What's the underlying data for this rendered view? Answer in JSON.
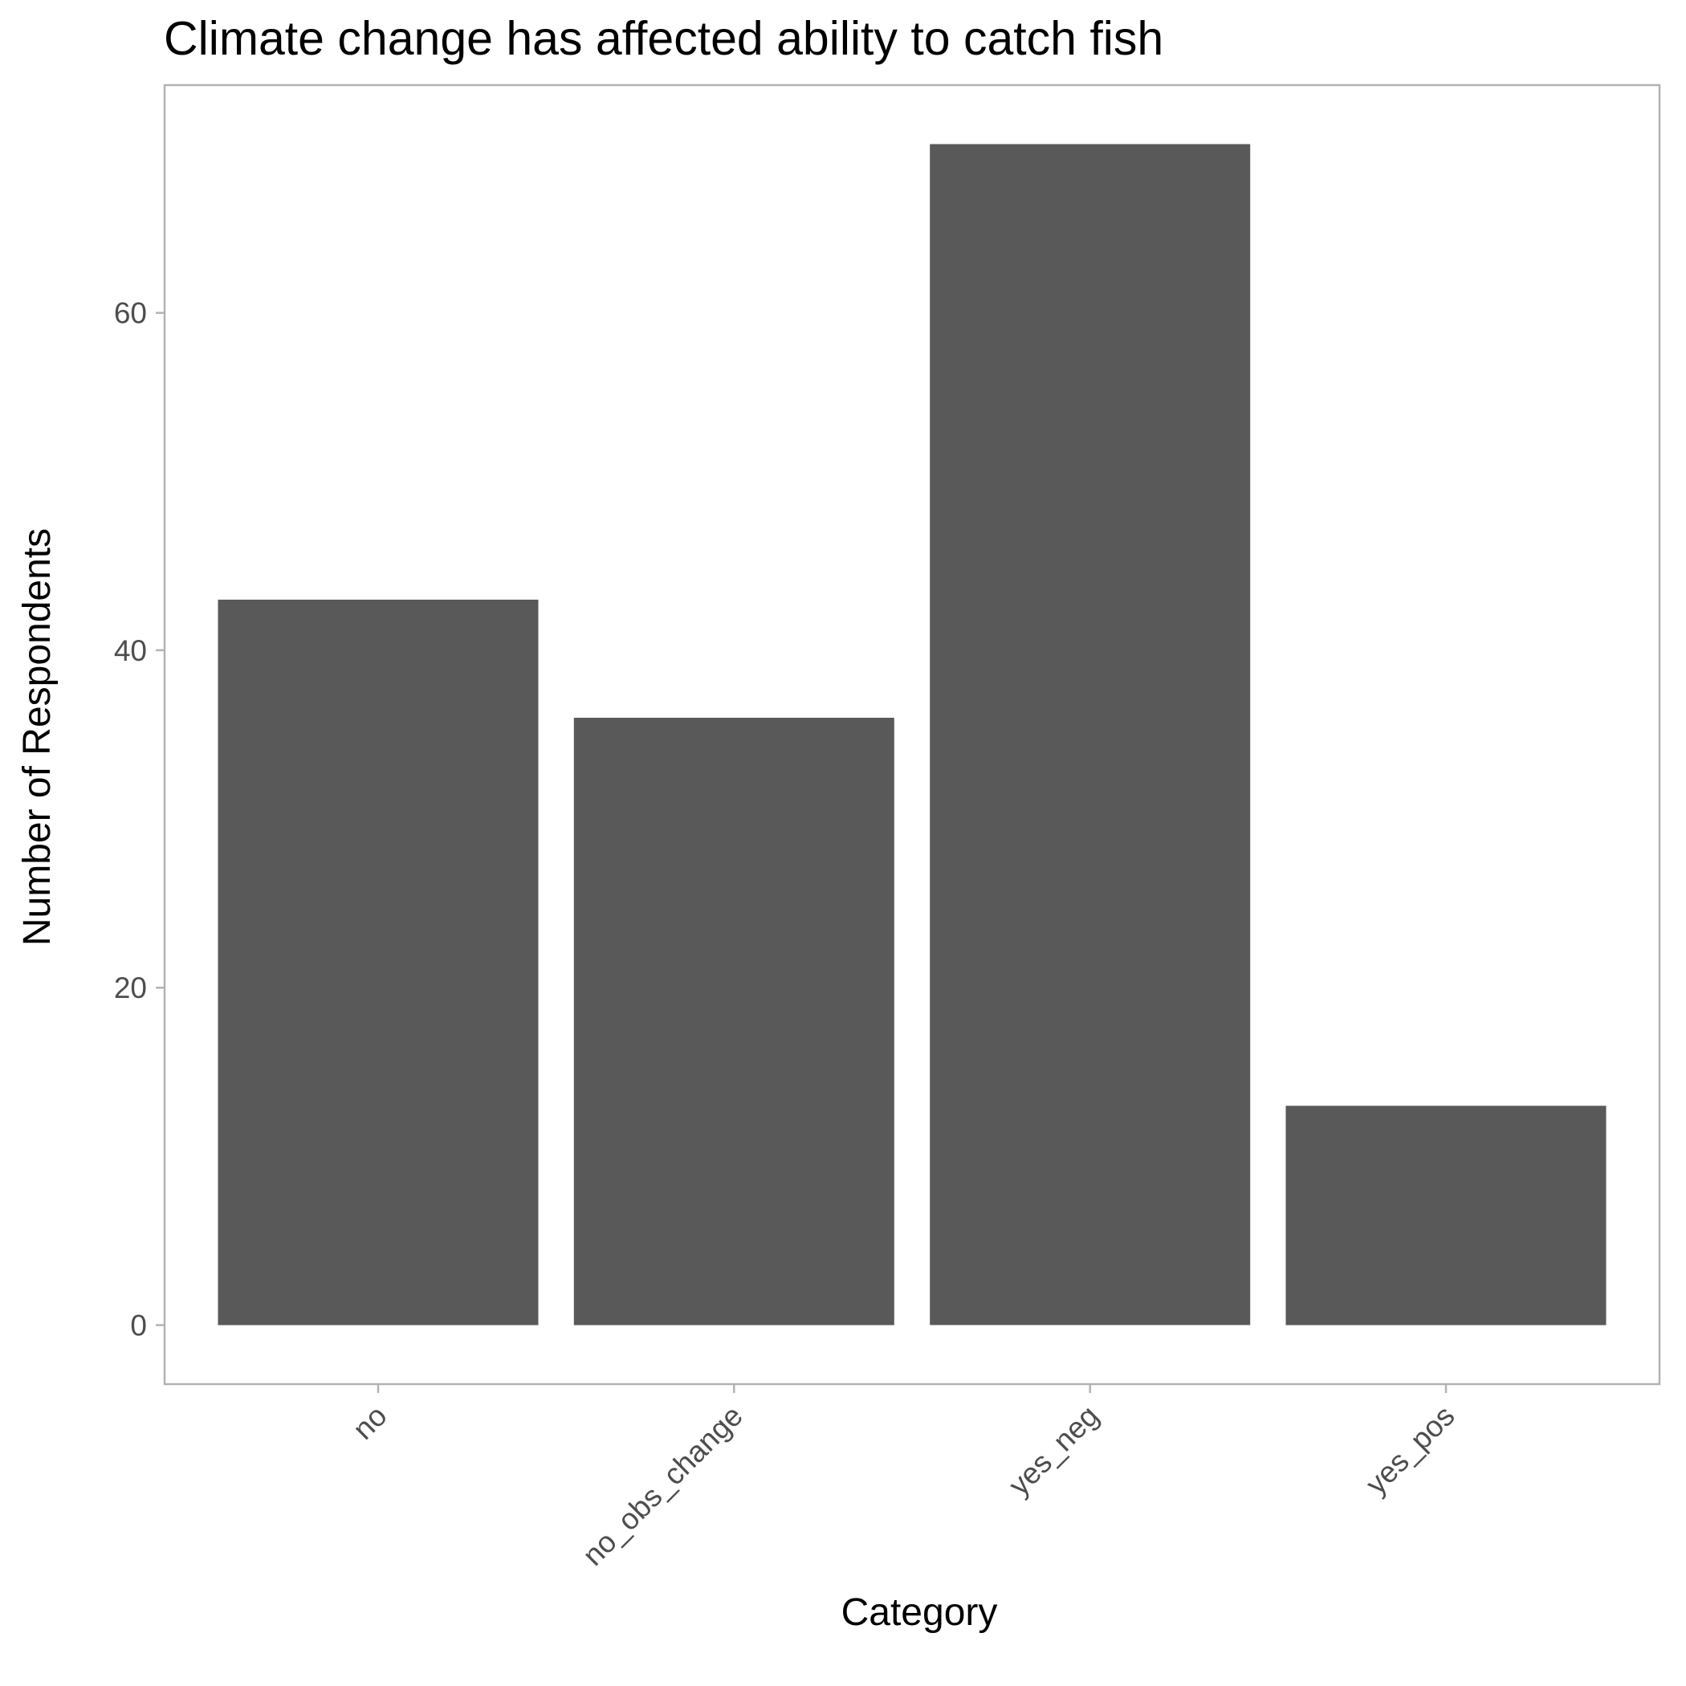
{
  "chart_data": {
    "type": "bar",
    "title": "Climate change has affected ability to catch fish",
    "xlabel": "Category",
    "ylabel": "Number of Respondents",
    "categories": [
      "no",
      "no_obs_change",
      "yes_neg",
      "yes_pos"
    ],
    "values": [
      43,
      36,
      70,
      13
    ],
    "ylim": [
      -3.5,
      73.5
    ],
    "yticks": [
      0,
      20,
      40,
      60
    ],
    "ytick_labels": [
      "0",
      "20",
      "40",
      "60"
    ],
    "grid": false,
    "legend": "none",
    "bar_color": "#595959",
    "x_tick_label_rotation": "45"
  }
}
